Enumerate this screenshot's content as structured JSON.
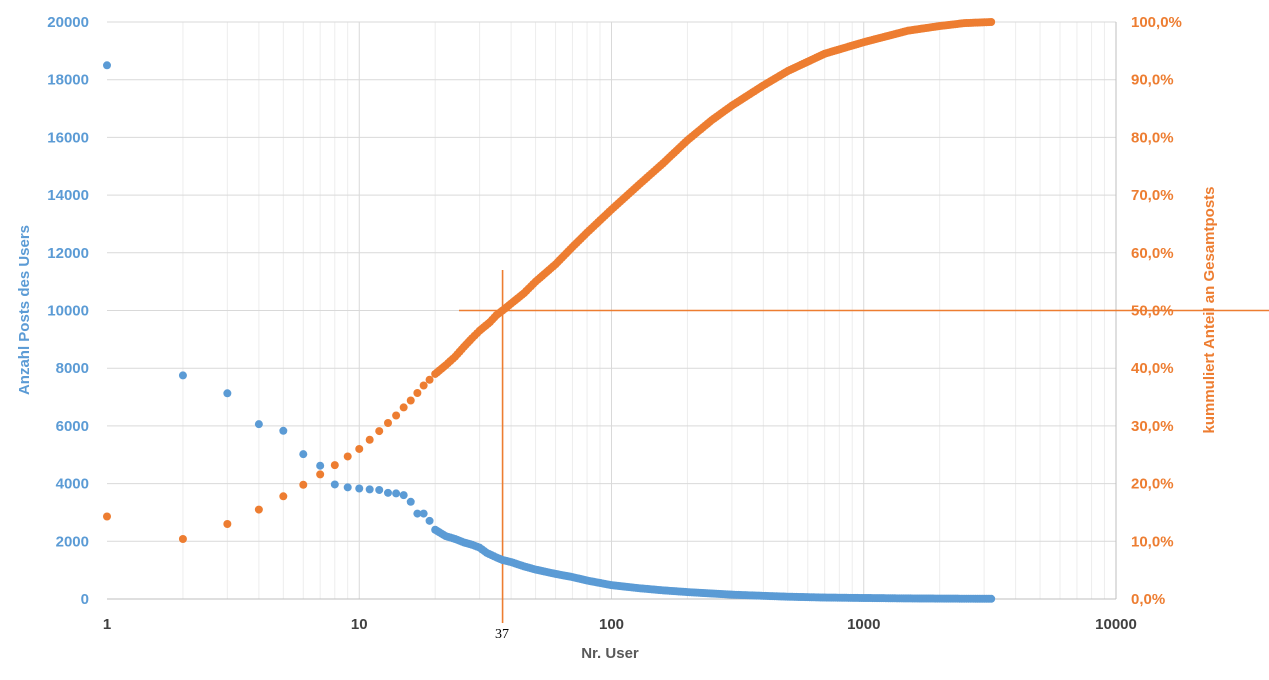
{
  "chart_data": {
    "type": "scatter",
    "xscale": "log",
    "xlim": [
      1,
      10000
    ],
    "ylim_left": [
      0,
      20000
    ],
    "ylim_right": [
      0,
      1
    ],
    "grid": true,
    "xlabel": "Nr. User",
    "ylabel_left": "Anzahl Posts des Users",
    "ylabel_right": "kummuliert Anteil an Gesamtposts",
    "x_ticks": [
      "1",
      "10",
      "100",
      "1000",
      "10000"
    ],
    "y_left_ticks": [
      "0",
      "2000",
      "4000",
      "6000",
      "8000",
      "10000",
      "12000",
      "14000",
      "16000",
      "18000",
      "20000"
    ],
    "y_right_ticks": [
      "0,0%",
      "10,0%",
      "20,0%",
      "30,0%",
      "40,0%",
      "50,0%",
      "60,0%",
      "70,0%",
      "80,0%",
      "90,0%",
      "100,0%"
    ],
    "colors": {
      "posts": "#5b9bd5",
      "cumulative": "#ed7d31",
      "grid": "#d9d9d9",
      "minor_grid": "#ededed"
    },
    "marker": {
      "x": 37,
      "label": "37",
      "y_right": 0.5
    },
    "series": [
      {
        "axis": "left",
        "points": [
          [
            1,
            18500
          ],
          [
            2,
            7750
          ],
          [
            3,
            7130
          ],
          [
            4,
            6060
          ],
          [
            5,
            5830
          ],
          [
            6,
            5020
          ],
          [
            7,
            4620
          ],
          [
            8,
            3970
          ],
          [
            9,
            3870
          ],
          [
            10,
            3830
          ],
          [
            11,
            3800
          ],
          [
            12,
            3780
          ],
          [
            13,
            3680
          ],
          [
            14,
            3660
          ],
          [
            15,
            3600
          ],
          [
            16,
            3370
          ],
          [
            17,
            2960
          ],
          [
            18,
            2960
          ],
          [
            19,
            2710
          ],
          [
            20,
            2400
          ],
          [
            22,
            2180
          ],
          [
            24,
            2080
          ],
          [
            26,
            1960
          ],
          [
            28,
            1880
          ],
          [
            30,
            1780
          ],
          [
            32,
            1600
          ],
          [
            35,
            1440
          ],
          [
            37,
            1350
          ],
          [
            40,
            1280
          ],
          [
            45,
            1130
          ],
          [
            50,
            1020
          ],
          [
            60,
            870
          ],
          [
            70,
            760
          ],
          [
            80,
            640
          ],
          [
            100,
            480
          ],
          [
            130,
            370
          ],
          [
            160,
            300
          ],
          [
            200,
            240
          ],
          [
            250,
            190
          ],
          [
            300,
            150
          ],
          [
            400,
            110
          ],
          [
            500,
            80
          ],
          [
            700,
            50
          ],
          [
            1000,
            35
          ],
          [
            1500,
            20
          ],
          [
            2000,
            14
          ],
          [
            2500,
            10
          ],
          [
            3200,
            8
          ]
        ]
      },
      {
        "axis": "right",
        "points": [
          [
            1,
            0.143
          ],
          [
            2,
            0.104
          ],
          [
            3,
            0.13
          ],
          [
            4,
            0.155
          ],
          [
            5,
            0.178
          ],
          [
            6,
            0.198
          ],
          [
            7,
            0.216
          ],
          [
            8,
            0.232
          ],
          [
            9,
            0.247
          ],
          [
            10,
            0.26
          ],
          [
            11,
            0.276
          ],
          [
            12,
            0.291
          ],
          [
            13,
            0.305
          ],
          [
            14,
            0.318
          ],
          [
            15,
            0.332
          ],
          [
            16,
            0.344
          ],
          [
            17,
            0.357
          ],
          [
            18,
            0.37
          ],
          [
            19,
            0.38
          ],
          [
            20,
            0.39
          ],
          [
            22,
            0.405
          ],
          [
            24,
            0.42
          ],
          [
            26,
            0.437
          ],
          [
            28,
            0.452
          ],
          [
            30,
            0.465
          ],
          [
            33,
            0.48
          ],
          [
            35,
            0.492
          ],
          [
            37,
            0.5
          ],
          [
            40,
            0.512
          ],
          [
            45,
            0.53
          ],
          [
            50,
            0.55
          ],
          [
            60,
            0.58
          ],
          [
            70,
            0.61
          ],
          [
            80,
            0.635
          ],
          [
            100,
            0.675
          ],
          [
            130,
            0.72
          ],
          [
            160,
            0.755
          ],
          [
            200,
            0.795
          ],
          [
            250,
            0.83
          ],
          [
            300,
            0.855
          ],
          [
            400,
            0.89
          ],
          [
            500,
            0.915
          ],
          [
            700,
            0.945
          ],
          [
            1000,
            0.965
          ],
          [
            1500,
            0.985
          ],
          [
            2000,
            0.993
          ],
          [
            2500,
            0.998
          ],
          [
            3200,
            1.0
          ]
        ]
      }
    ]
  }
}
